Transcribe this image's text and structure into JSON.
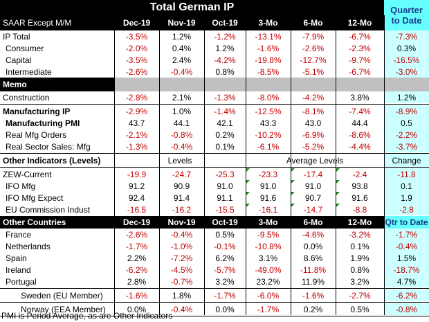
{
  "title": "Total German IP",
  "quarter_header": [
    "Quarter",
    "to Date"
  ],
  "header": {
    "label": "SAAR Except M/M",
    "cols": [
      "Dec-19",
      "Nov-19",
      "Oct-19",
      "3-Mo",
      "6-Mo",
      "12-Mo"
    ]
  },
  "ip_rows": [
    {
      "label": "IP Total",
      "vals": [
        "-3.5%",
        "1.2%",
        "-1.2%",
        "-13.1%",
        "-7.9%",
        "-6.7%"
      ],
      "qtd": "-7.3%"
    },
    {
      "label": "Consumer",
      "vals": [
        "-2.0%",
        "0.4%",
        "1.2%",
        "-1.6%",
        "-2.6%",
        "-2.3%"
      ],
      "qtd": "0.3%"
    },
    {
      "label": "Capital",
      "vals": [
        "-3.5%",
        "2.4%",
        "-4.2%",
        "-19.8%",
        "-12.7%",
        "-9.7%"
      ],
      "qtd": "-16.5%"
    },
    {
      "label": "Intermediate",
      "vals": [
        "-2.6%",
        "-0.4%",
        "0.8%",
        "-8.5%",
        "-5.1%",
        "-6.7%"
      ],
      "qtd": "-3.0%"
    }
  ],
  "memo": {
    "header": "Memo",
    "construction": {
      "label": "Construction",
      "vals": [
        "-2.8%",
        "2.1%",
        "-1.3%",
        "-8.0%",
        "-4.2%",
        "3.8%"
      ],
      "qtd": "1.2%"
    }
  },
  "mfg_rows": [
    {
      "label": "Manufacturing IP",
      "vals": [
        "-2.9%",
        "1.0%",
        "-1.4%",
        "-12.5%",
        "-8.1%",
        "-7.4%"
      ],
      "qtd": "-8.9%"
    },
    {
      "label": "Manufacturing PMI",
      "vals": [
        "43.7",
        "44.1",
        "42.1",
        "43.3",
        "43.0",
        "44.4"
      ],
      "qtd": "0.5"
    },
    {
      "label": "Real Mfg Orders",
      "vals": [
        "-2.1%",
        "-0.8%",
        "0.2%",
        "-10.2%",
        "-6.9%",
        "-8.6%"
      ],
      "qtd": "-2.2%"
    },
    {
      "label": "Real Sector Sales: Mfg",
      "vals": [
        "-1.3%",
        "-0.4%",
        "0.1%",
        "-6.1%",
        "-5.2%",
        "-4.4%"
      ],
      "qtd": "-3.7%"
    }
  ],
  "other_indicators": {
    "header": "Other Indicators (Levels)",
    "levels": "Levels",
    "avg_levels": "Average Levels",
    "change": "Change",
    "rows": [
      {
        "label": "ZEW-Current",
        "vals": [
          "-19.9",
          "-24.7",
          "-25.3",
          "-23.3",
          "-17.4",
          "-2.4"
        ],
        "qtd": "-11.8"
      },
      {
        "label": "IFO Mfg",
        "vals": [
          "91.2",
          "90.9",
          "91.0",
          "91.0",
          "91.0",
          "93.8"
        ],
        "qtd": "0.1"
      },
      {
        "label": "IFO Mfg Expect",
        "vals": [
          "92.4",
          "91.4",
          "91.1",
          "91.6",
          "90.7",
          "91.6"
        ],
        "qtd": "1.9"
      },
      {
        "label": "EU Commission Indust",
        "vals": [
          "-16.5",
          "-16.2",
          "-15.5",
          "-16.1",
          "-14.7",
          "-8.8"
        ],
        "qtd": "-2.8"
      }
    ]
  },
  "countries": {
    "header": "Other Countries",
    "cols": [
      "Dec-19",
      "Nov-19",
      "Oct-19",
      "3-Mo",
      "6-Mo",
      "12-Mo"
    ],
    "qtd_header": "Qtr to Date",
    "rows": [
      {
        "label": "France",
        "vals": [
          "-2.6%",
          "-0.4%",
          "0.5%",
          "-9.5%",
          "-4.6%",
          "-3.2%"
        ],
        "qtd": "-1.7%"
      },
      {
        "label": "Netherlands",
        "vals": [
          "-1.7%",
          "-1.0%",
          "-0.1%",
          "-10.8%",
          "0.0%",
          "0.1%"
        ],
        "qtd": "-0.4%"
      },
      {
        "label": "Spain",
        "vals": [
          "2.2%",
          "-7.2%",
          "6.2%",
          "3.1%",
          "8.6%",
          "1.9%"
        ],
        "qtd": "1.5%"
      },
      {
        "label": "Ireland",
        "vals": [
          "-6.2%",
          "-4.5%",
          "-5.7%",
          "-49.0%",
          "-11.8%",
          "0.8%"
        ],
        "qtd": "-18.7%"
      },
      {
        "label": "Portugal",
        "vals": [
          "2.8%",
          "-0.7%",
          "3.2%",
          "23.2%",
          "11.9%",
          "3.2%"
        ],
        "qtd": "4.7%"
      }
    ],
    "extra_rows": [
      {
        "label": "Sweden (EU Member)",
        "vals": [
          "-1.6%",
          "1.8%",
          "-1.7%",
          "-6.0%",
          "-1.6%",
          "-2.7%"
        ],
        "qtd": "-6.2%"
      },
      {
        "label": "Norway (EEA Member)",
        "vals": [
          "0.0%",
          "-0.4%",
          "0.0%",
          "-1.7%",
          "0.2%",
          "0.5%"
        ],
        "qtd": "-0.8%"
      }
    ]
  },
  "footnote": "PMI is Period Average, as are Other Indicators"
}
